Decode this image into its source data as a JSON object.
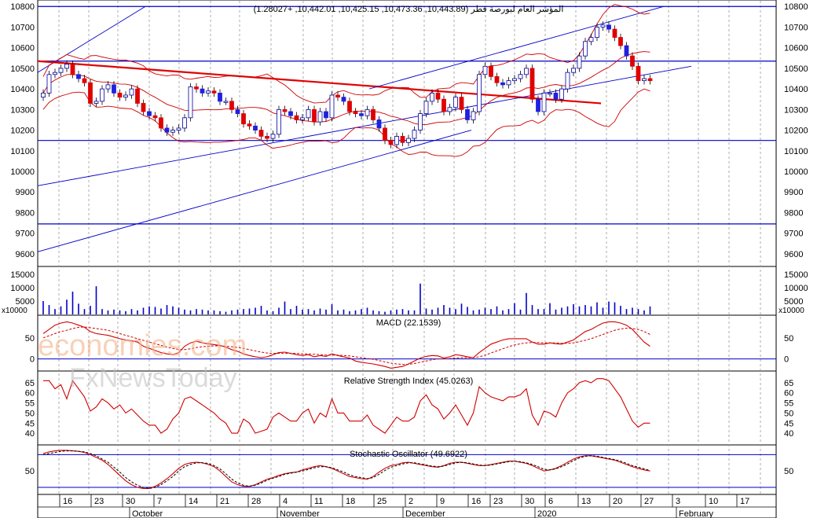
{
  "chart_data": [
    {
      "type": "candlestick",
      "title": "المؤشر العام لبورصة قطر (10,443.89, 10,473.36, 10,425.15, 10,442.01, +1.28027)",
      "ylim": [
        9550,
        10820
      ],
      "yticks": [
        9600,
        9700,
        9800,
        9900,
        10000,
        10100,
        10200,
        10300,
        10400,
        10500,
        10600,
        10700,
        10800
      ],
      "horizontal_lines": [
        10800,
        10535,
        10150,
        9745
      ],
      "series": [
        {
          "name": "close",
          "values": [
            10380,
            10470,
            10480,
            10500,
            10520,
            10470,
            10450,
            10430,
            10330,
            10340,
            10400,
            10420,
            10380,
            10360,
            10370,
            10400,
            10330,
            10290,
            10270,
            10260,
            10210,
            10190,
            10200,
            10210,
            10260,
            10410,
            10400,
            10380,
            10390,
            10380,
            10340,
            10340,
            10300,
            10280,
            10230,
            10220,
            10200,
            10170,
            10160,
            10180,
            10300,
            10290,
            10270,
            10250,
            10260,
            10300,
            10240,
            10290,
            10260,
            10370,
            10360,
            10340,
            10290,
            10280,
            10270,
            10300,
            10250,
            10210,
            10150,
            10130,
            10170,
            10140,
            10160,
            10200,
            10280,
            10340,
            10380,
            10350,
            10290,
            10310,
            10360,
            10300,
            10250,
            10290,
            10470,
            10510,
            10460,
            10430,
            10420,
            10440,
            10450,
            10470,
            10500,
            10350,
            10290,
            10380,
            10380,
            10350,
            10400,
            10480,
            10500,
            10560,
            10630,
            10650,
            10700,
            10710,
            10690,
            10650,
            10610,
            10560,
            10510,
            10440,
            10450,
            10440
          ]
        }
      ],
      "x_ticks": [
        "16",
        "23",
        "30",
        "7",
        "14",
        "21",
        "28",
        "4",
        "11",
        "18",
        "25",
        "2",
        "9",
        "16",
        "23",
        "30",
        "6",
        "13",
        "20",
        "27",
        "3",
        "10",
        "17"
      ],
      "month_labels": [
        "October",
        "November",
        "December",
        "2020",
        "February"
      ]
    },
    {
      "type": "bar",
      "title": "",
      "unit_label": "x10000",
      "yticks": [
        5000,
        10000,
        15000
      ],
      "values": [
        5000,
        3500,
        2000,
        3000,
        5500,
        8500,
        4000,
        2000,
        3200,
        10500,
        2000,
        1500,
        1800,
        1500,
        1200,
        2000,
        1500,
        2500,
        3000,
        2800,
        2200,
        3500,
        3000,
        2500,
        1800,
        1500,
        2000,
        1800,
        1500,
        1500,
        1200,
        1000,
        1500,
        1800,
        2000,
        2200,
        2500,
        3200,
        1500,
        1200,
        2500,
        4800,
        2000,
        3200,
        1800,
        2000,
        1500,
        2200,
        1800,
        3800,
        1500,
        1800,
        1200,
        1500,
        2000,
        2500,
        1500,
        1200,
        1000,
        1500,
        1800,
        2000,
        1500,
        1500,
        11500,
        2200,
        1800,
        2500,
        3500,
        2500,
        2000,
        4000,
        2800,
        1500,
        1800,
        2500,
        2000,
        3000,
        1500,
        2000,
        4200,
        1800,
        8000,
        3500,
        2000,
        2000,
        4200,
        1800,
        2500,
        3000,
        3800,
        3000,
        3500,
        3000,
        4500,
        2500,
        4800,
        4500,
        3200,
        2000,
        2500,
        2000,
        1500,
        3000
      ]
    },
    {
      "type": "line",
      "title": "MACD (22.1539)",
      "yticks": [
        0,
        50
      ],
      "series": [
        {
          "name": "MACD",
          "values": [
            60,
            70,
            80,
            85,
            88,
            85,
            80,
            75,
            65,
            60,
            58,
            56,
            52,
            48,
            45,
            43,
            40,
            30,
            25,
            20,
            15,
            12,
            10,
            15,
            30,
            38,
            42,
            38,
            36,
            34,
            32,
            28,
            22,
            18,
            12,
            8,
            5,
            3,
            5,
            10,
            15,
            16,
            13,
            10,
            8,
            10,
            5,
            8,
            6,
            12,
            8,
            5,
            2,
            -5,
            -8,
            -10,
            -12,
            -15,
            -18,
            -22,
            -20,
            -18,
            -12,
            -5,
            2,
            6,
            8,
            7,
            2,
            5,
            10,
            8,
            5,
            3,
            15,
            25,
            35,
            40,
            45,
            48,
            48,
            48,
            48,
            40,
            35,
            35,
            38,
            36,
            35,
            40,
            45,
            55,
            65,
            70,
            78,
            85,
            88,
            88,
            85,
            80,
            70,
            55,
            40,
            30
          ]
        },
        {
          "name": "Signal",
          "values": [
            50,
            55,
            60,
            65,
            68,
            72,
            75,
            76,
            74,
            72,
            70,
            68,
            64,
            60,
            56,
            52,
            48,
            44,
            40,
            36,
            32,
            28,
            25,
            22,
            22,
            24,
            27,
            29,
            30,
            31,
            31,
            30,
            29,
            27,
            25,
            22,
            19,
            16,
            14,
            13,
            13,
            13,
            13,
            13,
            12,
            12,
            11,
            10,
            9,
            9,
            9,
            8,
            7,
            5,
            3,
            1,
            -1,
            -4,
            -7,
            -10,
            -12,
            -13,
            -13,
            -11,
            -8,
            -5,
            -2,
            0,
            0,
            1,
            2,
            3,
            3,
            3,
            5,
            9,
            14,
            19,
            24,
            29,
            33,
            36,
            38,
            39,
            39,
            38,
            38,
            38,
            37,
            37,
            38,
            41,
            44,
            48,
            53,
            58,
            63,
            68,
            71,
            73,
            72,
            70,
            65,
            58
          ]
        }
      ]
    },
    {
      "type": "line",
      "title": "Relative Strength Index (45.0263)",
      "yticks": [
        40,
        45,
        50,
        55,
        60,
        65
      ],
      "series": [
        {
          "name": "RSI",
          "values": [
            66,
            66,
            62,
            64,
            57,
            66,
            62,
            58,
            51,
            53,
            57,
            55,
            52,
            54,
            50,
            52,
            49,
            46,
            44,
            44,
            40,
            42,
            47,
            50,
            57,
            58,
            56,
            54,
            52,
            50,
            47,
            45,
            40,
            40,
            47,
            45,
            40,
            41,
            42,
            48,
            50,
            48,
            46,
            46,
            50,
            52,
            45,
            50,
            48,
            57,
            50,
            50,
            46,
            46,
            46,
            49,
            44,
            42,
            40,
            44,
            48,
            46,
            46,
            48,
            56,
            59,
            54,
            52,
            47,
            50,
            54,
            49,
            44,
            50,
            63,
            60,
            58,
            57,
            56,
            58,
            58,
            59,
            62,
            49,
            44,
            51,
            50,
            48,
            55,
            60,
            62,
            65,
            66,
            65,
            67,
            67,
            66,
            62,
            58,
            52,
            46,
            43,
            45,
            45
          ]
        }
      ]
    },
    {
      "type": "line",
      "title": "Stochastic Oscillator (49.6922)",
      "yticks": [
        50
      ],
      "series": [
        {
          "name": "%K",
          "values": [
            82,
            85,
            87,
            88,
            88,
            87,
            86,
            84,
            80,
            75,
            70,
            62,
            52,
            42,
            32,
            25,
            20,
            18,
            18,
            22,
            28,
            36,
            45,
            55,
            62,
            65,
            66,
            65,
            62,
            58,
            50,
            40,
            30,
            25,
            22,
            22,
            25,
            30,
            35,
            38,
            42,
            45,
            47,
            48,
            52,
            55,
            58,
            60,
            58,
            55,
            50,
            45,
            40,
            38,
            36,
            35,
            40,
            48,
            55,
            60,
            62,
            65,
            66,
            64,
            62,
            60,
            58,
            57,
            60,
            64,
            66,
            66,
            64,
            62,
            60,
            60,
            62,
            64,
            66,
            68,
            68,
            66,
            64,
            60,
            55,
            50,
            52,
            55,
            60,
            66,
            72,
            76,
            78,
            78,
            76,
            74,
            72,
            70,
            66,
            62,
            58,
            55,
            52,
            50
          ]
        },
        {
          "name": "%D",
          "values": [
            80,
            82,
            84,
            86,
            87,
            87,
            86,
            85,
            82,
            78,
            72,
            66,
            57,
            48,
            38,
            30,
            24,
            20,
            18,
            20,
            25,
            32,
            40,
            50,
            58,
            62,
            65,
            65,
            64,
            60,
            54,
            45,
            35,
            28,
            24,
            22,
            24,
            28,
            33,
            37,
            40,
            44,
            46,
            48,
            50,
            53,
            56,
            58,
            58,
            56,
            52,
            48,
            43,
            40,
            38,
            36,
            38,
            44,
            51,
            57,
            60,
            63,
            65,
            65,
            63,
            61,
            59,
            58,
            59,
            62,
            65,
            66,
            65,
            63,
            61,
            60,
            61,
            63,
            65,
            67,
            68,
            67,
            65,
            62,
            58,
            53,
            52,
            54,
            58,
            63,
            69,
            74,
            77,
            78,
            77,
            75,
            73,
            71,
            68,
            64,
            60,
            57,
            54,
            51
          ]
        }
      ]
    }
  ],
  "watermark": {
    "line1": "economies.com",
    "line2": "FxNewsToday"
  }
}
